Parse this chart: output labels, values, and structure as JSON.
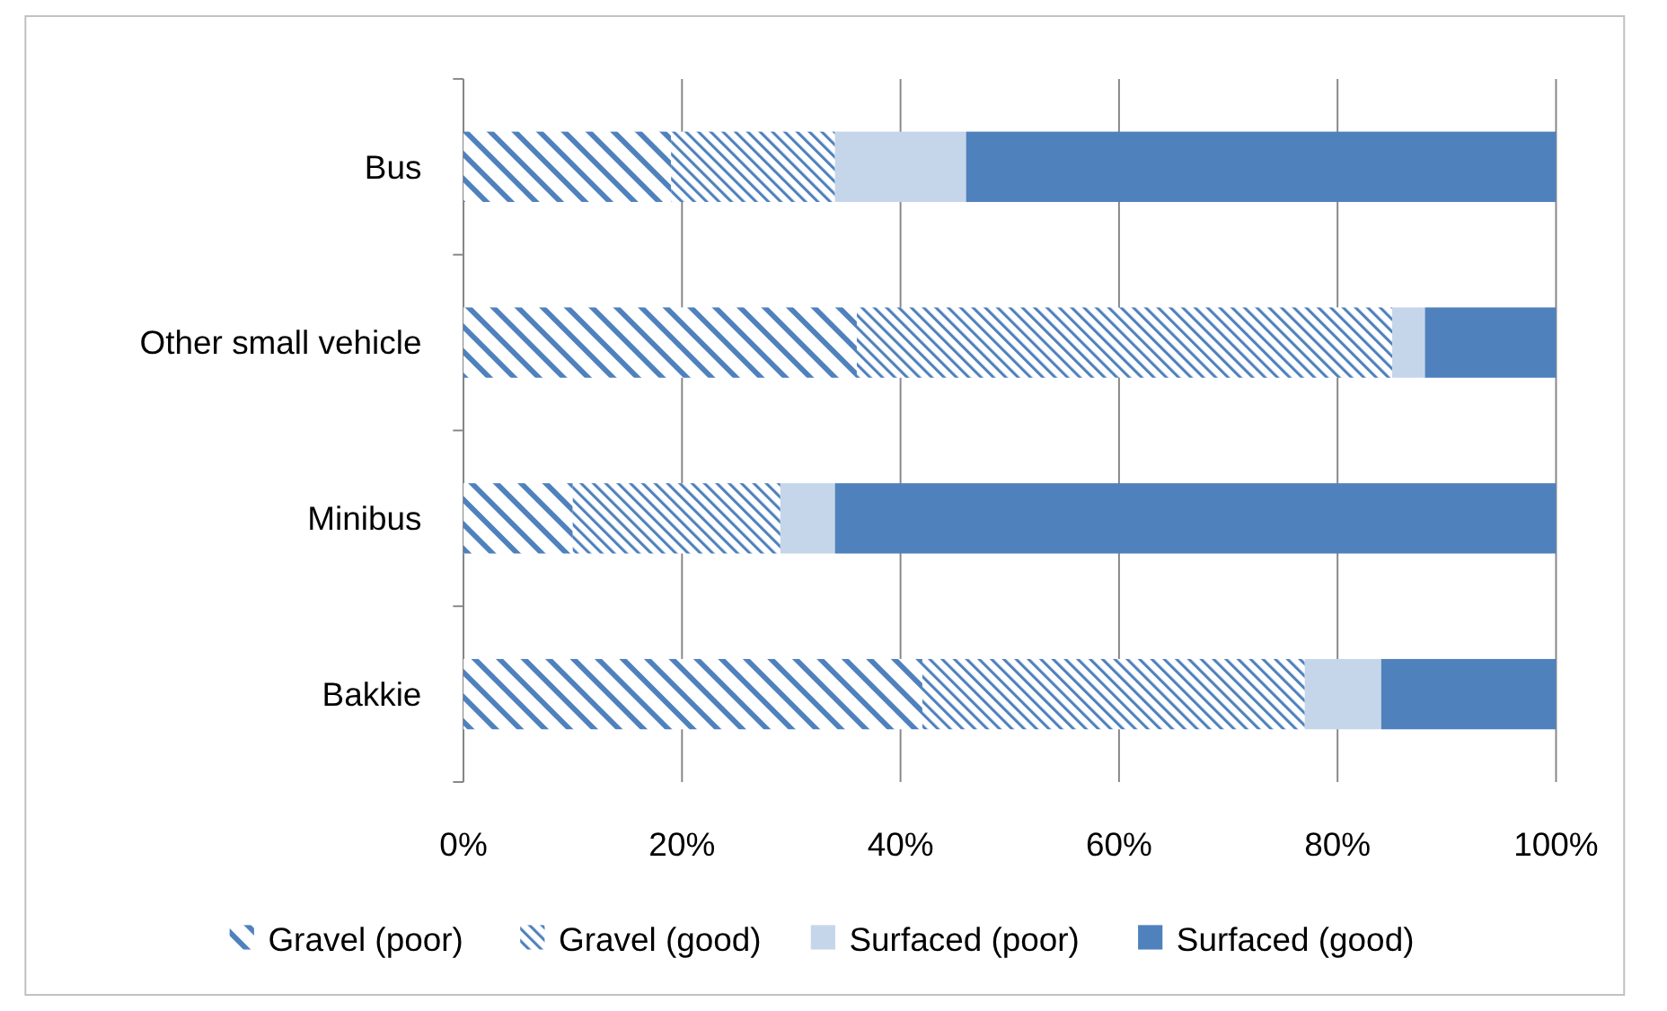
{
  "chart_data": {
    "type": "bar",
    "orientation": "horizontal",
    "stacked": true,
    "categories": [
      "Bus",
      "Other small vehicle",
      "Minibus",
      "Bakkie"
    ],
    "series": [
      {
        "name": "Gravel (poor)",
        "color": "#4f81bd",
        "values": [
          19,
          36,
          10,
          42
        ]
      },
      {
        "name": "Gravel (good)",
        "color": "#4f81bd",
        "values": [
          15,
          49,
          19,
          35
        ]
      },
      {
        "name": "Surfaced (poor)",
        "color": "#c6d6ea",
        "values": [
          12,
          3,
          5,
          7
        ]
      },
      {
        "name": "Surfaced (good)",
        "color": "#4f81bd",
        "values": [
          54,
          12,
          66,
          16
        ]
      }
    ],
    "xlim": [
      0,
      100
    ],
    "xticks": [
      {
        "value": 0,
        "label": "0%"
      },
      {
        "value": 20,
        "label": "20%"
      },
      {
        "value": 40,
        "label": "40%"
      },
      {
        "value": 60,
        "label": "60%"
      },
      {
        "value": 80,
        "label": "80%"
      },
      {
        "value": 100,
        "label": "100%"
      }
    ],
    "grid": "x",
    "legend": "bottom"
  }
}
